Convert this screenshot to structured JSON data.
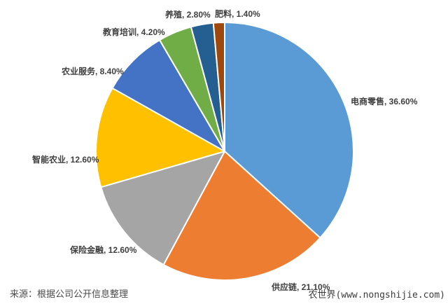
{
  "chart_data": {
    "type": "pie",
    "title": "",
    "legend": "none",
    "labels_outside": true,
    "start_angle_deg": 0,
    "direction": "clockwise",
    "label_format": "name, percent",
    "slices": [
      {
        "label": "电商零售",
        "value": 36.6,
        "display": "36.60%",
        "color": "#5B9BD5"
      },
      {
        "label": "供应链",
        "value": 21.1,
        "display": "21.10%",
        "color": "#ED7D31"
      },
      {
        "label": "保险金融",
        "value": 12.6,
        "display": "12.60%",
        "color": "#A5A5A5"
      },
      {
        "label": "智能农业",
        "value": 12.6,
        "display": "12.60%",
        "color": "#FFC000"
      },
      {
        "label": "农业服务",
        "value": 8.4,
        "display": "8.40%",
        "color": "#4472C4"
      },
      {
        "label": "教育培训",
        "value": 4.2,
        "display": "4.20%",
        "color": "#70AD47"
      },
      {
        "label": "养殖",
        "value": 2.8,
        "display": "2.80%",
        "color": "#255E91"
      },
      {
        "label": "肥料",
        "value": 1.4,
        "display": "1.40%",
        "color": "#9E480E"
      }
    ],
    "slice_border_color": "#ffffff"
  },
  "footer": {
    "source": "来源：根据公司公开信息整理",
    "watermark": "农世界(www.nongshijie.com)"
  }
}
